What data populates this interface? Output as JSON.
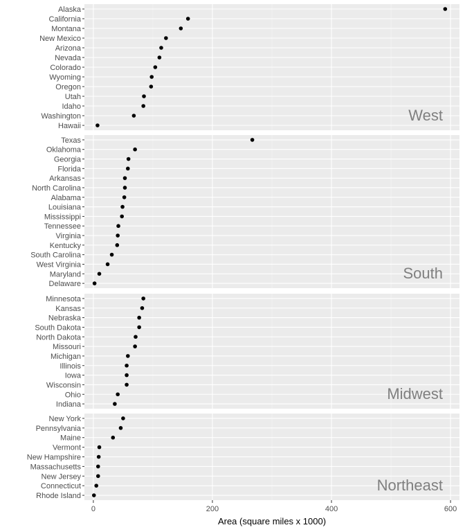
{
  "chart_data": {
    "type": "scatter",
    "xlabel": "Area (square miles x 1000)",
    "xlim": [
      -15,
      615
    ],
    "x_ticks": [
      0,
      200,
      400,
      600
    ],
    "x_tick_labels": [
      "0",
      "200",
      "400",
      "600"
    ],
    "grid": true,
    "panels": [
      {
        "label": "West",
        "points": [
          {
            "state": "Alaska",
            "area": 591
          },
          {
            "state": "California",
            "area": 159
          },
          {
            "state": "Montana",
            "area": 147
          },
          {
            "state": "New Mexico",
            "area": 122
          },
          {
            "state": "Arizona",
            "area": 114
          },
          {
            "state": "Nevada",
            "area": 111
          },
          {
            "state": "Colorado",
            "area": 104
          },
          {
            "state": "Wyoming",
            "area": 98
          },
          {
            "state": "Oregon",
            "area": 97
          },
          {
            "state": "Utah",
            "area": 85
          },
          {
            "state": "Idaho",
            "area": 84
          },
          {
            "state": "Washington",
            "area": 68
          },
          {
            "state": "Hawaii",
            "area": 7
          }
        ]
      },
      {
        "label": "South",
        "points": [
          {
            "state": "Texas",
            "area": 267
          },
          {
            "state": "Oklahoma",
            "area": 70
          },
          {
            "state": "Georgia",
            "area": 59
          },
          {
            "state": "Florida",
            "area": 58
          },
          {
            "state": "Arkansas",
            "area": 53
          },
          {
            "state": "North Carolina",
            "area": 53
          },
          {
            "state": "Alabama",
            "area": 52
          },
          {
            "state": "Louisiana",
            "area": 49
          },
          {
            "state": "Mississippi",
            "area": 48
          },
          {
            "state": "Tennessee",
            "area": 42
          },
          {
            "state": "Virginia",
            "area": 41
          },
          {
            "state": "Kentucky",
            "area": 40
          },
          {
            "state": "South Carolina",
            "area": 31
          },
          {
            "state": "West Virginia",
            "area": 24
          },
          {
            "state": "Maryland",
            "area": 10
          },
          {
            "state": "Delaware",
            "area": 2
          }
        ]
      },
      {
        "label": "Midwest",
        "points": [
          {
            "state": "Minnesota",
            "area": 84
          },
          {
            "state": "Kansas",
            "area": 82
          },
          {
            "state": "Nebraska",
            "area": 77
          },
          {
            "state": "South Dakota",
            "area": 77
          },
          {
            "state": "North Dakota",
            "area": 71
          },
          {
            "state": "Missouri",
            "area": 70
          },
          {
            "state": "Michigan",
            "area": 58
          },
          {
            "state": "Illinois",
            "area": 56
          },
          {
            "state": "Iowa",
            "area": 56
          },
          {
            "state": "Wisconsin",
            "area": 56
          },
          {
            "state": "Ohio",
            "area": 41
          },
          {
            "state": "Indiana",
            "area": 36
          }
        ]
      },
      {
        "label": "Northeast",
        "points": [
          {
            "state": "New York",
            "area": 50
          },
          {
            "state": "Pennsylvania",
            "area": 46
          },
          {
            "state": "Maine",
            "area": 33
          },
          {
            "state": "Vermont",
            "area": 10
          },
          {
            "state": "New Hampshire",
            "area": 9
          },
          {
            "state": "Massachusetts",
            "area": 8
          },
          {
            "state": "New Jersey",
            "area": 8
          },
          {
            "state": "Connecticut",
            "area": 5
          },
          {
            "state": "Rhode Island",
            "area": 1
          }
        ]
      }
    ]
  },
  "colors": {
    "panel_background": "#ebebeb",
    "grid_major": "#ffffff",
    "grid_minor": "#f5f5f5",
    "point": "#000000",
    "panel_label": "#7f7f7f",
    "tick_text": "#4d4d4d"
  }
}
